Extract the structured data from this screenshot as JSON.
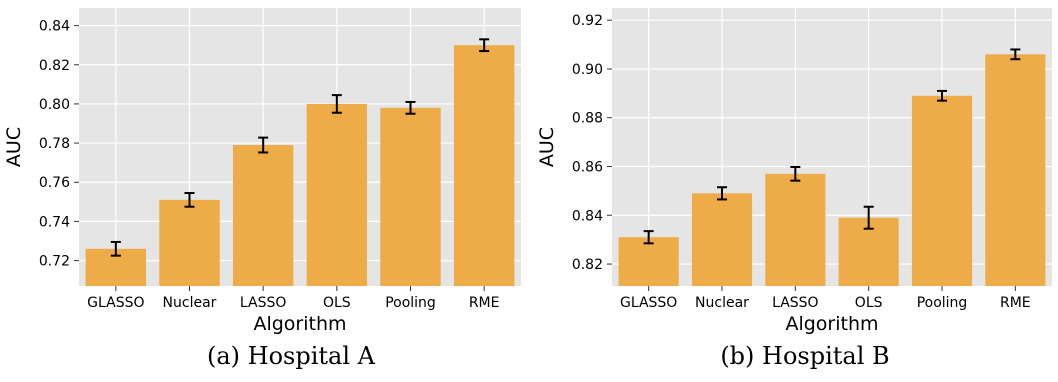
{
  "chart_data": [
    {
      "type": "bar",
      "caption": "(a) Hospital A",
      "xlabel": "Algorithm",
      "ylabel": "AUC",
      "categories": [
        "GLASSO",
        "Nuclear",
        "LASSO",
        "OLS",
        "Pooling",
        "RME"
      ],
      "values": [
        0.726,
        0.751,
        0.779,
        0.8,
        0.798,
        0.83
      ],
      "errors": [
        0.0035,
        0.0035,
        0.0038,
        0.0045,
        0.003,
        0.003
      ],
      "ylim": [
        0.707,
        0.849
      ],
      "yticks": [
        0.72,
        0.74,
        0.76,
        0.78,
        0.8,
        0.82,
        0.84
      ],
      "ytick_labels": [
        "0.72",
        "0.74",
        "0.76",
        "0.78",
        "0.80",
        "0.82",
        "0.84"
      ],
      "grid": true,
      "bar_color": "#eeac48",
      "background_color": "#e5e5e5"
    },
    {
      "type": "bar",
      "caption": "(b) Hospital B",
      "xlabel": "Algorithm",
      "ylabel": "AUC",
      "categories": [
        "GLASSO",
        "Nuclear",
        "LASSO",
        "OLS",
        "Pooling",
        "RME"
      ],
      "values": [
        0.831,
        0.849,
        0.857,
        0.839,
        0.889,
        0.906
      ],
      "errors": [
        0.0025,
        0.0025,
        0.0028,
        0.0045,
        0.002,
        0.002
      ],
      "ylim": [
        0.811,
        0.925
      ],
      "yticks": [
        0.82,
        0.84,
        0.86,
        0.88,
        0.9,
        0.92
      ],
      "ytick_labels": [
        "0.82",
        "0.84",
        "0.86",
        "0.88",
        "0.90",
        "0.92"
      ],
      "grid": true,
      "bar_color": "#eeac48",
      "background_color": "#e5e5e5"
    }
  ]
}
